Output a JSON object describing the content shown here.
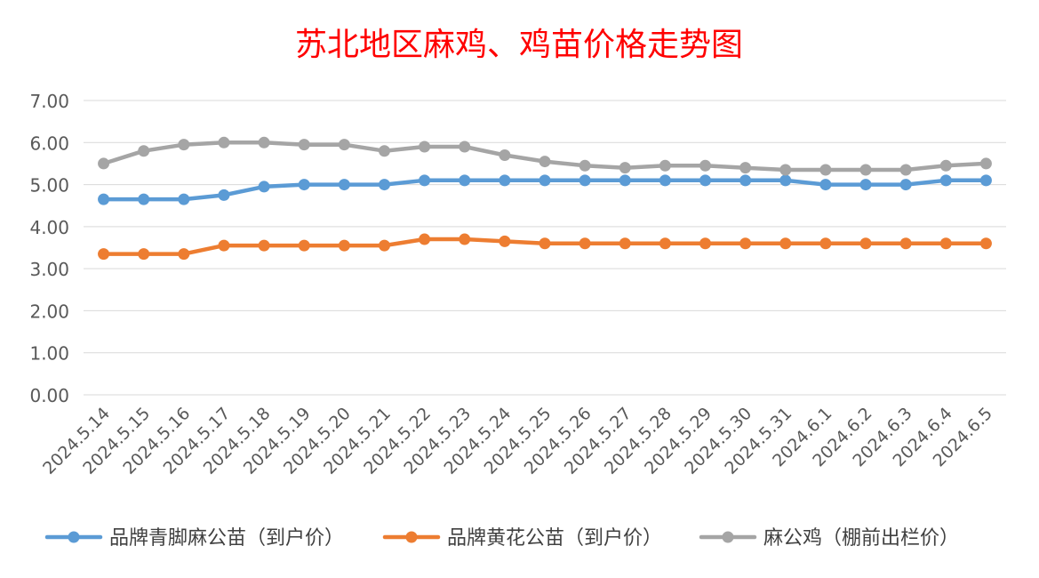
{
  "chart_data": {
    "type": "line",
    "title": "苏北地区麻鸡、鸡苗价格走势图",
    "xlabel": "",
    "ylabel": "",
    "ylim": [
      0,
      7
    ],
    "y_ticks": [
      "0.00",
      "1.00",
      "2.00",
      "3.00",
      "4.00",
      "5.00",
      "6.00",
      "7.00"
    ],
    "grid": true,
    "legend_position": "bottom",
    "categories": [
      "2024.5.14",
      "2024.5.15",
      "2024.5.16",
      "2024.5.17",
      "2024.5.18",
      "2024.5.19",
      "2024.5.20",
      "2024.5.21",
      "2024.5.22",
      "2024.5.23",
      "2024.5.24",
      "2024.5.25",
      "2024.5.26",
      "2024.5.27",
      "2024.5.28",
      "2024.5.29",
      "2024.5.30",
      "2024.5.31",
      "2024.6.1",
      "2024.6.2",
      "2024.6.3",
      "2024.6.4",
      "2024.6.5"
    ],
    "series": [
      {
        "name": "品牌青脚麻公苗（到户价）",
        "color": "#5B9BD5",
        "values": [
          4.65,
          4.65,
          4.65,
          4.75,
          4.95,
          5.0,
          5.0,
          5.0,
          5.1,
          5.1,
          5.1,
          5.1,
          5.1,
          5.1,
          5.1,
          5.1,
          5.1,
          5.1,
          5.0,
          5.0,
          5.0,
          5.1,
          5.1
        ]
      },
      {
        "name": "品牌黄花公苗（到户价）",
        "color": "#ED7D31",
        "values": [
          3.35,
          3.35,
          3.35,
          3.55,
          3.55,
          3.55,
          3.55,
          3.55,
          3.7,
          3.7,
          3.65,
          3.6,
          3.6,
          3.6,
          3.6,
          3.6,
          3.6,
          3.6,
          3.6,
          3.6,
          3.6,
          3.6,
          3.6
        ]
      },
      {
        "name": "麻公鸡（棚前出栏价）",
        "color": "#A5A5A5",
        "values": [
          5.5,
          5.8,
          5.95,
          6.0,
          6.0,
          5.95,
          5.95,
          5.8,
          5.9,
          5.9,
          5.7,
          5.55,
          5.45,
          5.4,
          5.45,
          5.45,
          5.4,
          5.35,
          5.35,
          5.35,
          5.35,
          5.45,
          5.5
        ]
      }
    ]
  },
  "colors": {
    "title": "#FF0000",
    "grid": "#D9D9D9",
    "axis_text": "#595959",
    "legend_text": "#404040"
  }
}
